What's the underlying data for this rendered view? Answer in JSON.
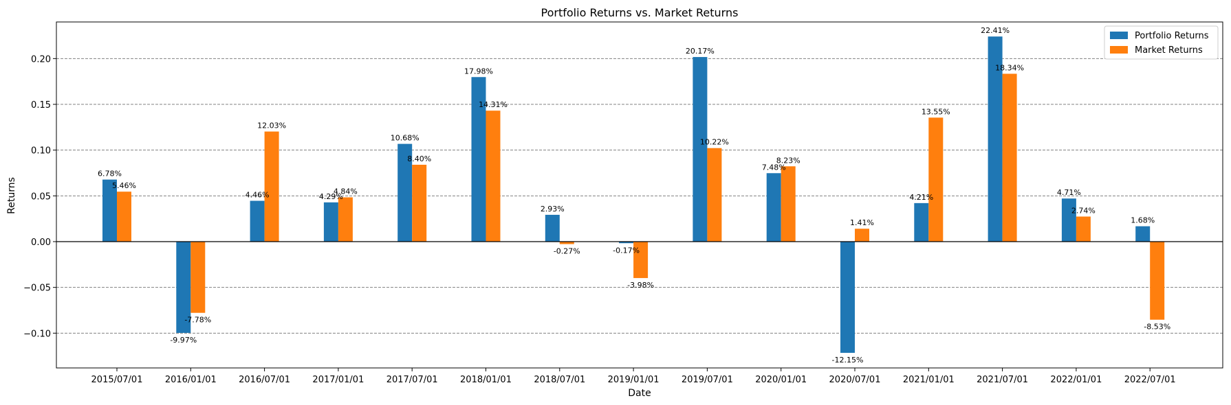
{
  "chart_data": {
    "type": "bar",
    "title": "Portfolio Returns vs. Market Returns",
    "xlabel": "Date",
    "ylabel": "Returns",
    "categories": [
      "2015/07/01",
      "2016/01/01",
      "2016/07/01",
      "2017/01/01",
      "2017/07/01",
      "2018/01/01",
      "2018/07/01",
      "2019/01/01",
      "2019/07/01",
      "2020/01/01",
      "2020/07/01",
      "2021/01/01",
      "2021/07/01",
      "2022/01/01",
      "2022/07/01"
    ],
    "series": [
      {
        "name": "Portfolio Returns",
        "color": "#1f77b4",
        "values": [
          0.0678,
          -0.0997,
          0.0446,
          0.0429,
          0.1068,
          0.1798,
          0.0293,
          -0.0017,
          0.2017,
          0.0748,
          -0.1215,
          0.0421,
          0.2241,
          0.0471,
          0.0168
        ],
        "labels": [
          "6.78%",
          "-9.97%",
          "4.46%",
          "4.29%",
          "10.68%",
          "17.98%",
          "2.93%",
          "-0.17%",
          "20.17%",
          "7.48%",
          "-12.15%",
          "4.21%",
          "22.41%",
          "4.71%",
          "1.68%"
        ]
      },
      {
        "name": "Market Returns",
        "color": "#ff7f0e",
        "values": [
          0.0546,
          -0.0778,
          0.1203,
          0.0484,
          0.084,
          0.1431,
          -0.0027,
          -0.0398,
          0.1022,
          0.0823,
          0.0141,
          0.1355,
          0.1834,
          0.0274,
          -0.0853
        ],
        "labels": [
          "5.46%",
          "-7.78%",
          "12.03%",
          "4.84%",
          "8.40%",
          "14.31%",
          "-0.27%",
          "-3.98%",
          "10.22%",
          "8.23%",
          "1.41%",
          "13.55%",
          "18.34%",
          "2.74%",
          "-8.53%"
        ]
      }
    ],
    "ylim": [
      -0.138,
      0.24
    ],
    "yticks": [
      -0.1,
      -0.05,
      0.0,
      0.05,
      0.1,
      0.15,
      0.2
    ],
    "ytick_labels": [
      "−0.10",
      "−0.05",
      "0.00",
      "0.05",
      "0.10",
      "0.15",
      "0.20"
    ],
    "grid": "y-dashed",
    "legend_position": "top-right"
  }
}
